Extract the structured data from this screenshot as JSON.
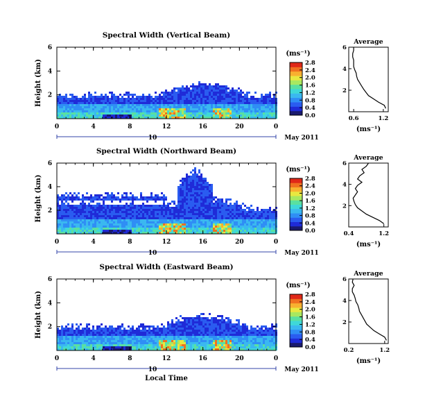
{
  "figure": {
    "xlabel": "Local Time",
    "date_label": "May 2011",
    "day_label": "10",
    "avg_title": "Average",
    "unit": "(ms⁻¹)"
  },
  "chart_data": [
    {
      "type": "heatmap",
      "title": "Spectral Width (Vertical Beam)",
      "xlabel": "Local Time",
      "ylabel": "Height (km)",
      "xlim": [
        0,
        24
      ],
      "ylim": [
        0,
        6
      ],
      "x_ticks": [
        "0",
        "4",
        "8",
        "12",
        "16",
        "20",
        "0"
      ],
      "y_ticks": [
        "2",
        "4",
        "6"
      ],
      "colorbar": {
        "label": "(ms⁻¹)",
        "ticks": [
          "0.0",
          "0.4",
          "0.8",
          "1.2",
          "1.6",
          "2.0",
          "2.4",
          "2.8"
        ],
        "range": [
          0,
          2.8
        ]
      },
      "average_profile": {
        "title": "Average",
        "xlabel": "(ms⁻¹)",
        "x_ticks": [
          "0.6",
          "1.2"
        ],
        "xlim": [
          0.5,
          1.3
        ],
        "y_ticks": [
          "2",
          "4",
          "6"
        ],
        "width": [
          1.25,
          1.22,
          1.1,
          1.0,
          0.9,
          0.85,
          0.8,
          0.76,
          0.72,
          0.68,
          0.66,
          0.65,
          0.62,
          0.6,
          0.6,
          0.6,
          0.58,
          0.58,
          0.6,
          0.6
        ],
        "height": [
          0.3,
          0.6,
          0.9,
          1.2,
          1.5,
          1.8,
          2.1,
          2.4,
          2.7,
          3.0,
          3.3,
          3.6,
          3.9,
          4.2,
          4.5,
          4.8,
          5.1,
          5.4,
          5.7,
          6.0
        ]
      }
    },
    {
      "type": "heatmap",
      "title": "Spectral Width (Northward Beam)",
      "xlabel": "Local Time",
      "ylabel": "Height (km)",
      "xlim": [
        0,
        24
      ],
      "ylim": [
        0,
        6
      ],
      "x_ticks": [
        "0",
        "4",
        "8",
        "12",
        "16",
        "20",
        "0"
      ],
      "y_ticks": [
        "2",
        "4",
        "6"
      ],
      "colorbar": {
        "label": "(ms⁻¹)",
        "ticks": [
          "0.0",
          "0.4",
          "0.8",
          "1.2",
          "1.6",
          "2.0",
          "2.4",
          "2.8"
        ],
        "range": [
          0,
          2.8
        ]
      },
      "average_profile": {
        "title": "Average",
        "xlabel": "(ms⁻¹)",
        "x_ticks": [
          "0.4",
          "1.2"
        ],
        "xlim": [
          0.4,
          1.3
        ],
        "y_ticks": [
          "2",
          "4",
          "6"
        ],
        "width": [
          1.2,
          1.1,
          0.95,
          0.8,
          0.7,
          0.6,
          0.55,
          0.52,
          0.5,
          0.55,
          0.6,
          0.55,
          0.6,
          0.7,
          0.6,
          0.65,
          0.75,
          0.7,
          0.8,
          0.85
        ],
        "height": [
          0.3,
          0.6,
          0.9,
          1.2,
          1.5,
          1.8,
          2.1,
          2.4,
          2.7,
          3.0,
          3.3,
          3.6,
          3.9,
          4.2,
          4.5,
          4.8,
          5.1,
          5.4,
          5.7,
          6.0
        ]
      }
    },
    {
      "type": "heatmap",
      "title": "Spectral Width (Eastward Beam)",
      "xlabel": "Local Time",
      "ylabel": "Height (km)",
      "xlim": [
        0,
        24
      ],
      "ylim": [
        0,
        6
      ],
      "x_ticks": [
        "0",
        "4",
        "8",
        "12",
        "16",
        "20",
        "0"
      ],
      "y_ticks": [
        "2",
        "4",
        "6"
      ],
      "colorbar": {
        "label": "(ms⁻¹)",
        "ticks": [
          "0.0",
          "0.4",
          "0.8",
          "1.2",
          "1.6",
          "2.0",
          "2.4",
          "2.8"
        ],
        "range": [
          0,
          2.8
        ]
      },
      "average_profile": {
        "title": "Average",
        "xlabel": "(ms⁻¹)",
        "x_ticks": [
          "0.2",
          "1.2"
        ],
        "xlim": [
          0.2,
          1.3
        ],
        "y_ticks": [
          "2",
          "4",
          "6"
        ],
        "width": [
          1.25,
          1.2,
          1.05,
          0.9,
          0.8,
          0.7,
          0.65,
          0.6,
          0.55,
          0.5,
          0.48,
          0.45,
          0.4,
          0.38,
          0.35,
          0.3,
          0.3,
          0.35,
          0.3,
          0.32
        ],
        "height": [
          0.3,
          0.6,
          0.9,
          1.2,
          1.5,
          1.8,
          2.1,
          2.4,
          2.7,
          3.0,
          3.3,
          3.6,
          3.9,
          4.2,
          4.5,
          4.8,
          5.1,
          5.4,
          5.7,
          6.0
        ]
      }
    }
  ],
  "colors": {
    "colormap": [
      "#1a1a6e",
      "#1f2bd8",
      "#2a5cf0",
      "#2f8ef5",
      "#3ab8f0",
      "#3fd8d8",
      "#5ae0a0",
      "#a8e860",
      "#e8e840",
      "#f8b030",
      "#f07020",
      "#e02818"
    ]
  }
}
